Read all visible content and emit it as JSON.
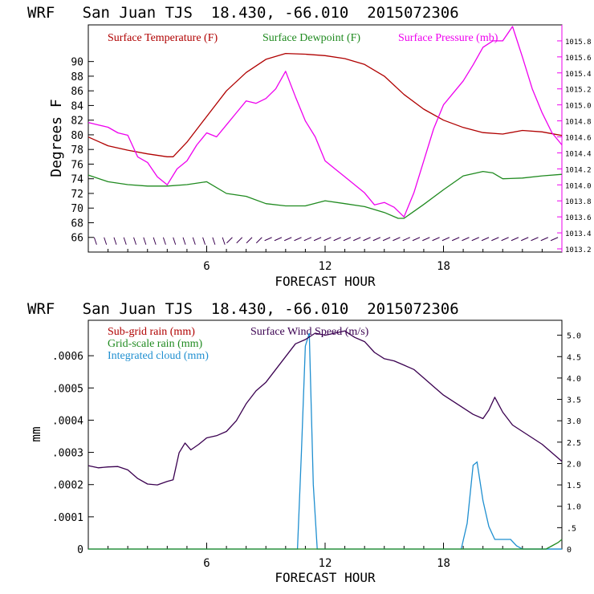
{
  "colors": {
    "temperature": "#b00000",
    "dewpoint": "#1f8a1f",
    "pressure": "#ee00ee",
    "subgrid_rain": "#b00000",
    "grid_rain": "#1f8a1f",
    "cloud": "#1f8fd0",
    "wind_speed": "#3a0050",
    "axis": "#000000",
    "wind_barbs": "#3a0050"
  },
  "chart_data": [
    {
      "type": "line",
      "header": "WRF   San Juan TJS  18.430, -66.010  2015072306",
      "xlabel": "FORECAST HOUR",
      "ylabel": "Degrees F",
      "xlim": [
        0,
        24
      ],
      "xticks": [
        "6",
        "12",
        "18"
      ],
      "xtick_values": [
        6,
        12,
        18
      ],
      "ylim": [
        64,
        95
      ],
      "yticks": [
        "66",
        "68",
        "70",
        "72",
        "74",
        "76",
        "78",
        "80",
        "82",
        "84",
        "86",
        "88",
        "90"
      ],
      "y2lim": [
        1013.16,
        1016.0
      ],
      "y2ticks": [
        "1013.2",
        "1013.4",
        "1013.6",
        "1013.8",
        "1014.0",
        "1014.2",
        "1014.4",
        "1014.6",
        "1014.8",
        "1015.0",
        "1015.2",
        "1015.4",
        "1015.6",
        "1015.8"
      ],
      "legend": [
        "Surface Temperature (F)",
        "Surface Dewpoint (F)",
        "Surface Pressure (mb)"
      ],
      "series": [
        {
          "name": "Surface Temperature (F)",
          "axis": "left",
          "x": [
            0,
            1,
            2,
            3,
            4,
            4.3,
            5,
            6,
            7,
            8,
            9,
            10,
            11,
            12,
            13,
            14,
            15,
            16,
            17,
            18,
            19,
            20,
            21,
            22,
            23,
            24
          ],
          "y": [
            79.7,
            78.5,
            77.9,
            77.4,
            77.0,
            77.0,
            79.0,
            82.5,
            86.0,
            88.5,
            90.3,
            91.1,
            91.0,
            90.8,
            90.4,
            89.6,
            88.0,
            85.5,
            83.5,
            82.0,
            81.0,
            80.3,
            80.1,
            80.6,
            80.4,
            79.9
          ]
        },
        {
          "name": "Surface Dewpoint (F)",
          "axis": "left",
          "x": [
            0,
            1,
            2,
            3,
            4,
            5,
            6,
            7,
            8,
            9,
            10,
            11,
            12,
            13,
            14,
            15,
            15.7,
            16,
            17,
            18,
            19,
            20,
            20.5,
            21,
            22,
            23,
            24
          ],
          "y": [
            74.5,
            73.6,
            73.2,
            73.0,
            73.0,
            73.2,
            73.6,
            72.0,
            71.6,
            70.6,
            70.3,
            70.3,
            71.0,
            70.6,
            70.2,
            69.4,
            68.6,
            68.6,
            70.5,
            72.5,
            74.4,
            75.0,
            74.8,
            74.0,
            74.1,
            74.4,
            74.6
          ],
          "note": ""
        },
        {
          "name": "Surface Pressure (mb)",
          "axis": "right",
          "x": [
            0,
            0.5,
            1,
            1.5,
            2,
            2.5,
            3,
            3.5,
            4,
            4.5,
            5,
            5.5,
            6,
            6.5,
            7,
            7.5,
            8,
            8.5,
            9,
            9.5,
            10,
            10.5,
            11,
            11.5,
            12,
            12.5,
            13,
            13.5,
            14,
            14.5,
            15,
            15.5,
            16,
            16.5,
            17,
            17.5,
            18,
            18.5,
            19,
            19.5,
            20,
            20.5,
            21,
            21.5,
            22,
            22.5,
            23,
            23.5,
            24
          ],
          "y": [
            1014.78,
            1014.75,
            1014.72,
            1014.65,
            1014.62,
            1014.35,
            1014.28,
            1014.1,
            1014.0,
            1014.2,
            1014.3,
            1014.5,
            1014.65,
            1014.6,
            1014.75,
            1014.9,
            1015.05,
            1015.02,
            1015.08,
            1015.2,
            1015.42,
            1015.1,
            1014.8,
            1014.6,
            1014.3,
            1014.2,
            1014.1,
            1014.0,
            1013.9,
            1013.75,
            1013.78,
            1013.72,
            1013.6,
            1013.9,
            1014.3,
            1014.7,
            1015.0,
            1015.15,
            1015.3,
            1015.5,
            1015.72,
            1015.8,
            1015.8,
            1015.98,
            1015.6,
            1015.2,
            1014.9,
            1014.65,
            1014.5
          ]
        }
      ],
      "wind_barbs": {
        "row_y": 66,
        "x_start": 0.3,
        "x_step": 0.5,
        "count": 48
      }
    },
    {
      "type": "line",
      "header": "WRF   San Juan TJS  18.430, -66.010  2015072306",
      "xlabel": "FORECAST HOUR",
      "ylabel": "mm",
      "xlim": [
        0,
        24
      ],
      "xticks": [
        "6",
        "12",
        "18"
      ],
      "xtick_values": [
        6,
        12,
        18
      ],
      "ylim": [
        0,
        0.00071
      ],
      "yticks": [
        "0",
        ".0001",
        ".0002",
        ".0003",
        ".0004",
        ".0005",
        ".0006"
      ],
      "ytick_values": [
        0,
        0.0001,
        0.0002,
        0.0003,
        0.0004,
        0.0005,
        0.0006
      ],
      "y2lim": [
        0,
        5.35
      ],
      "y2ticks": [
        "0",
        ".5",
        "1.0",
        "1.5",
        "2.0",
        "2.5",
        "3.0",
        "3.5",
        "4.0",
        "4.5",
        "5.0"
      ],
      "legend": [
        "Sub-grid rain (mm)",
        "Grid-scale rain (mm)",
        "Integrated cloud (mm)",
        "Surface Wind Speed (m/s)"
      ],
      "series": [
        {
          "name": "Integrated cloud (mm)",
          "axis": "left",
          "x": [
            0,
            10.6,
            10.8,
            11.0,
            11.2,
            11.4,
            11.6,
            24
          ],
          "y": [
            0,
            0,
            0.0003,
            0.00063,
            0.00067,
            0.0002,
            0,
            0
          ],
          "extra_x": [
            18.9,
            19.2,
            19.5,
            19.7,
            20.0,
            20.3,
            20.6,
            20.9,
            21.1,
            21.4,
            21.7,
            22.0,
            24
          ],
          "extra_y": [
            0,
            8e-05,
            0.00026,
            0.00027,
            0.00015,
            7e-05,
            3e-05,
            3e-05,
            3e-05,
            3e-05,
            1e-05,
            0,
            0
          ]
        },
        {
          "name": "Grid-scale rain (mm)",
          "axis": "left",
          "x": [
            0,
            23.2,
            23.5,
            23.8,
            24
          ],
          "y": [
            0,
            0,
            1e-05,
            2e-05,
            3e-05
          ]
        },
        {
          "name": "Surface Wind Speed (m/s)",
          "axis": "right",
          "x": [
            0,
            0.5,
            1,
            1.5,
            2,
            2.5,
            3,
            3.5,
            4,
            4.3,
            4.6,
            4.9,
            5.2,
            5.6,
            6,
            6.5,
            7,
            7.5,
            8,
            8.5,
            9,
            9.5,
            10,
            10.5,
            11,
            11.5,
            12,
            12.5,
            13,
            13.5,
            14,
            14.5,
            15,
            15.5,
            16,
            16.5,
            17,
            17.5,
            18,
            18.5,
            19,
            19.5,
            20,
            20.3,
            20.6,
            21,
            21.5,
            22,
            22.5,
            23,
            23.5,
            24
          ],
          "y": [
            1.95,
            1.9,
            1.92,
            1.93,
            1.85,
            1.65,
            1.52,
            1.5,
            1.58,
            1.62,
            2.25,
            2.48,
            2.32,
            2.45,
            2.6,
            2.65,
            2.75,
            3.0,
            3.4,
            3.7,
            3.9,
            4.2,
            4.5,
            4.8,
            4.9,
            5.05,
            5.0,
            5.05,
            5.1,
            4.95,
            4.85,
            4.6,
            4.45,
            4.4,
            4.3,
            4.2,
            4.0,
            3.8,
            3.6,
            3.45,
            3.3,
            3.15,
            3.05,
            3.25,
            3.55,
            3.2,
            2.9,
            2.75,
            2.6,
            2.45,
            2.25,
            2.05
          ]
        }
      ]
    }
  ]
}
